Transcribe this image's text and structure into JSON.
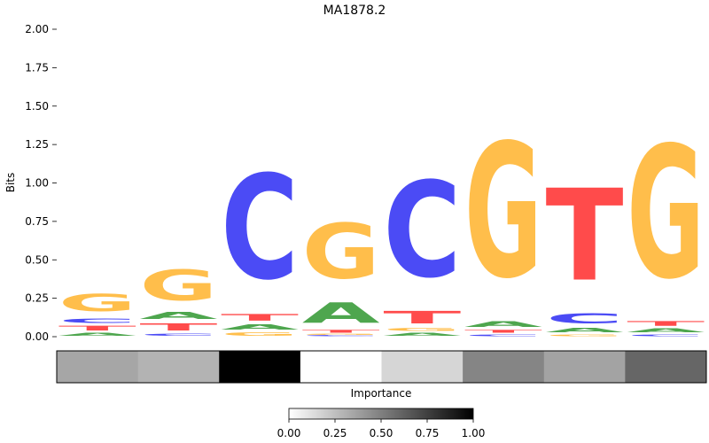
{
  "chart_data": {
    "type": "sequence-logo",
    "title": "MA1878.2",
    "ylabel": "Bits",
    "ylim": [
      0,
      2.0
    ],
    "yticks": [
      "0.00",
      "0.25",
      "0.50",
      "0.75",
      "1.00",
      "1.25",
      "1.50",
      "1.75",
      "2.00"
    ],
    "letter_colors": {
      "A": "#4ea64e",
      "C": "#4b4bf5",
      "G": "#ffbe4b",
      "T": "#ff4b4b"
    },
    "positions": [
      [
        {
          "l": "A",
          "v": 0.03
        },
        {
          "l": "T",
          "v": 0.05
        },
        {
          "l": "C",
          "v": 0.05
        },
        {
          "l": "G",
          "v": 0.18
        }
      ],
      [
        {
          "l": "C",
          "v": 0.025
        },
        {
          "l": "T",
          "v": 0.075
        },
        {
          "l": "A",
          "v": 0.07
        },
        {
          "l": "G",
          "v": 0.32
        }
      ],
      [
        {
          "l": "G",
          "v": 0.035
        },
        {
          "l": "A",
          "v": 0.055
        },
        {
          "l": "T",
          "v": 0.07
        },
        {
          "l": "C",
          "v": 1.09
        }
      ],
      [
        {
          "l": "C",
          "v": 0.01
        },
        {
          "l": "G",
          "v": 0.01
        },
        {
          "l": "T",
          "v": 0.03
        },
        {
          "l": "A",
          "v": 0.21
        },
        {
          "l": "G",
          "v": 0.58
        }
      ],
      [
        {
          "l": "A",
          "v": 0.03
        },
        {
          "l": "G",
          "v": 0.03
        },
        {
          "l": "T",
          "v": 0.13
        },
        {
          "l": "C",
          "v": 1.0
        }
      ],
      [
        {
          "l": "C",
          "v": 0.02
        },
        {
          "l": "T",
          "v": 0.03
        },
        {
          "l": "A",
          "v": 0.06
        },
        {
          "l": "G",
          "v": 1.4
        }
      ],
      [
        {
          "l": "G",
          "v": 0.02
        },
        {
          "l": "A",
          "v": 0.045
        },
        {
          "l": "C",
          "v": 0.11
        },
        {
          "l": "T",
          "v": 0.96
        }
      ],
      [
        {
          "l": "C",
          "v": 0.02
        },
        {
          "l": "A",
          "v": 0.04
        },
        {
          "l": "T",
          "v": 0.05
        },
        {
          "l": "G",
          "v": 1.38
        }
      ]
    ],
    "importance": {
      "label": "Importance",
      "values": [
        0.35,
        0.3,
        1.0,
        0.0,
        0.16,
        0.48,
        0.36,
        0.6
      ]
    },
    "colorbar": {
      "ticks": [
        "0.00",
        "0.25",
        "0.50",
        "0.75",
        "1.00"
      ]
    }
  }
}
